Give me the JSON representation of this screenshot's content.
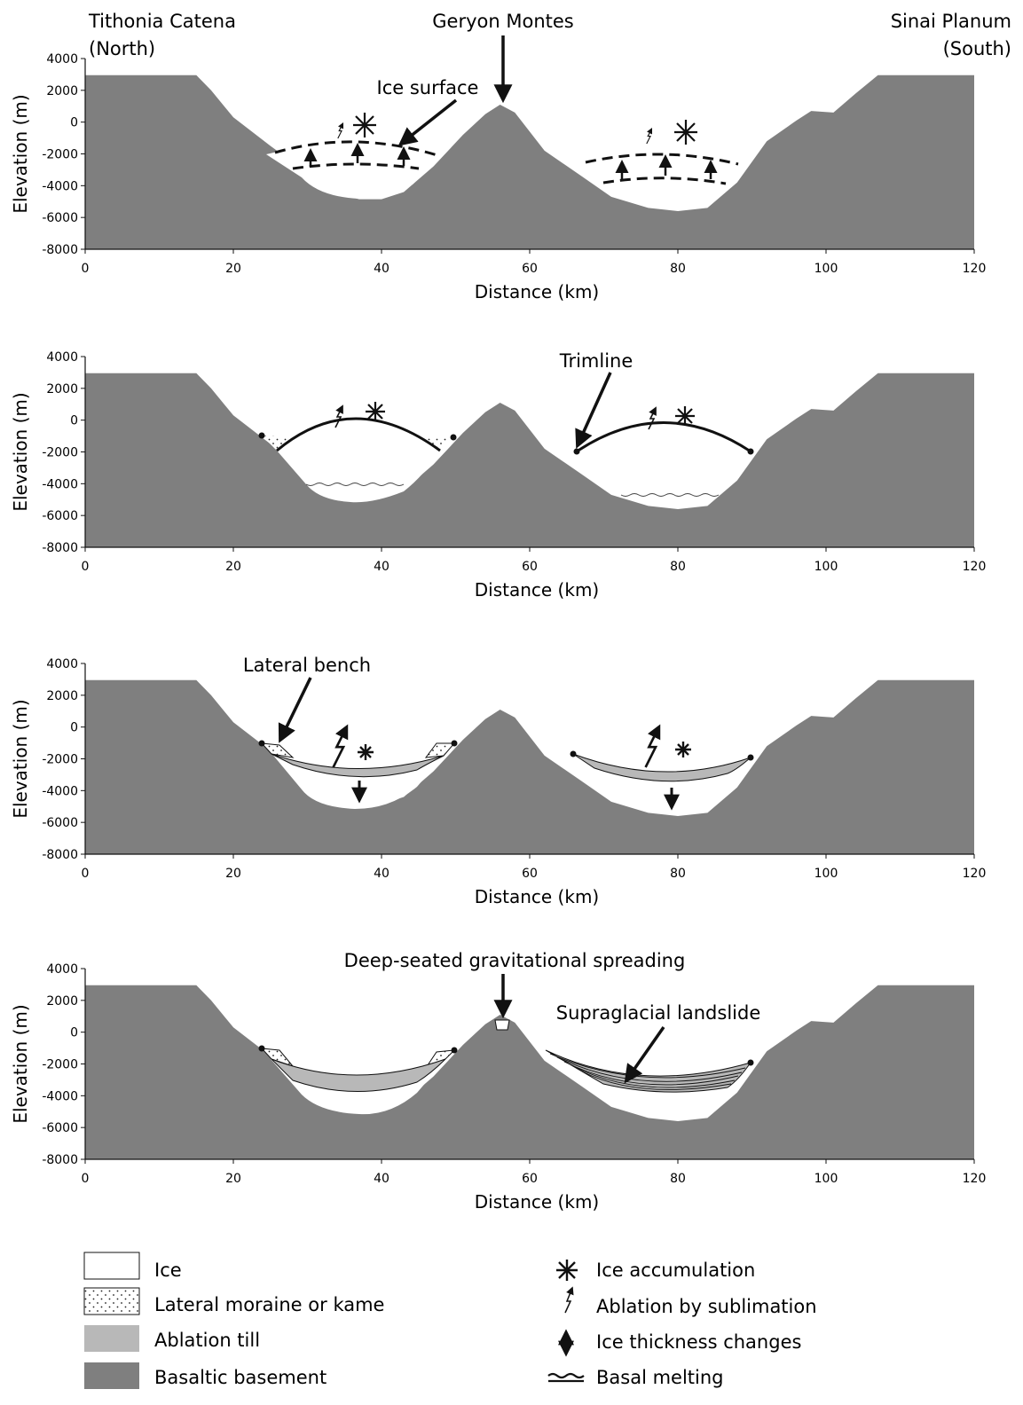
{
  "header": {
    "left_line1": "Tithonia Catena",
    "left_line2": "(North)",
    "right_line1": "Sinai Planum",
    "right_line2": "(South)"
  },
  "axes": {
    "ylabel": "Elevation (m)",
    "xlabel": "Distance (km)",
    "yticks": [
      "4000",
      "2000",
      "0",
      "-2000",
      "-4000",
      "-6000",
      "-8000"
    ],
    "xticks": [
      "0",
      "20",
      "40",
      "60",
      "80",
      "100",
      "120"
    ],
    "xlim": [
      0,
      120
    ],
    "ylim": [
      -8000,
      4000
    ]
  },
  "panels": [
    {
      "stage": 1,
      "annotations": {
        "peak": "Geryon Montes",
        "ice_surface": "Ice surface"
      }
    },
    {
      "stage": 2,
      "annotations": {
        "trimline": "Trimline"
      }
    },
    {
      "stage": 3,
      "annotations": {
        "lateral_bench": "Lateral bench"
      }
    },
    {
      "stage": 4,
      "annotations": {
        "dsgs": "Deep-seated gravitational spreading",
        "landslide": "Supraglacial landslide"
      }
    }
  ],
  "legend": {
    "fills": [
      {
        "label": "Ice",
        "color": "#ffffff"
      },
      {
        "label": "Lateral moraine or kame",
        "color": "#ffffff"
      },
      {
        "label": "Ablation till",
        "color": "#b8b8b8"
      },
      {
        "label": "Basaltic basement",
        "color": "#7f7f7f"
      }
    ],
    "symbols": [
      {
        "label": "Ice accumulation",
        "icon": "asterisk-icon"
      },
      {
        "label": "Ablation by sublimation",
        "icon": "lightning-arrow-icon"
      },
      {
        "label": "Ice thickness changes",
        "icon": "double-arrow-icon"
      },
      {
        "label": "Basal melting",
        "icon": "wavy-lines-icon"
      }
    ]
  }
}
